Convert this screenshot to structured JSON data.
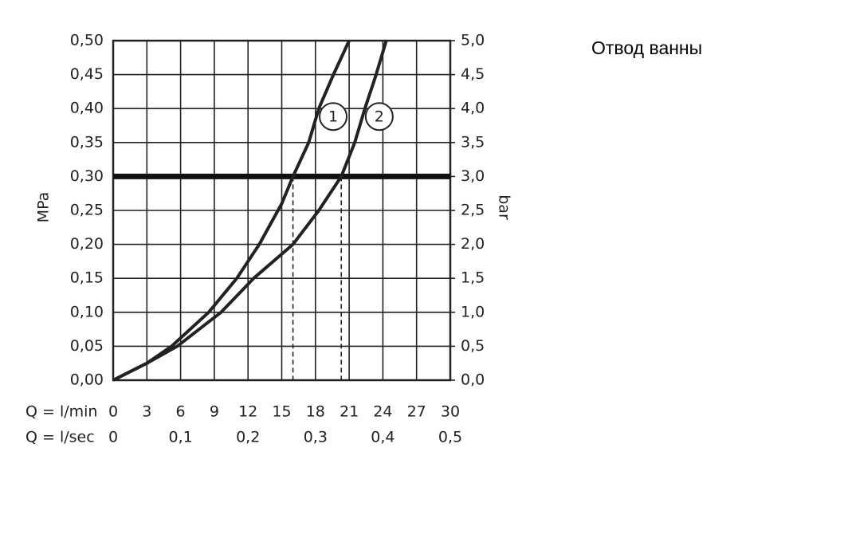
{
  "chart_data": {
    "type": "line",
    "title": "Отвод ванны",
    "y_label": "MPa",
    "y2_label": "bar",
    "x_label": "Q = l/min",
    "x2_label": "Q = l/sec",
    "xlim": [
      0,
      30
    ],
    "xticks": [
      0,
      3,
      6,
      9,
      12,
      15,
      18,
      21,
      24,
      27,
      30
    ],
    "x2lim": [
      0,
      0.5
    ],
    "x2ticks": [
      0,
      {
        "value": 0.1,
        "label": "0,1"
      },
      {
        "value": 0.2,
        "label": "0,2"
      },
      {
        "value": 0.3,
        "label": "0,3"
      },
      {
        "value": 0.4,
        "label": "0,4"
      },
      {
        "value": 0.5,
        "label": "0,5"
      }
    ],
    "ylim": [
      0,
      0.5
    ],
    "yticks": [
      {
        "value": 0,
        "label": "0,00"
      },
      {
        "value": 0.05,
        "label": "0,05"
      },
      {
        "value": 0.1,
        "label": "0,10"
      },
      {
        "value": 0.15,
        "label": "0,15"
      },
      {
        "value": 0.2,
        "label": "0,20"
      },
      {
        "value": 0.25,
        "label": "0,25"
      },
      {
        "value": 0.3,
        "label": "0,30"
      },
      {
        "value": 0.35,
        "label": "0,35"
      },
      {
        "value": 0.4,
        "label": "0,40"
      },
      {
        "value": 0.45,
        "label": "0,45"
      },
      {
        "value": 0.5,
        "label": "0,50"
      }
    ],
    "y2lim": [
      0,
      5
    ],
    "y2ticks": [
      {
        "value": 0,
        "label": "0,0"
      },
      {
        "value": 0.5,
        "label": "0,5"
      },
      {
        "value": 1,
        "label": "1,0"
      },
      {
        "value": 1.5,
        "label": "1,5"
      },
      {
        "value": 2,
        "label": "2,0"
      },
      {
        "value": 2.5,
        "label": "2,5"
      },
      {
        "value": 3,
        "label": "3,0"
      },
      {
        "value": 3.5,
        "label": "3,5"
      },
      {
        "value": 4,
        "label": "4,0"
      },
      {
        "value": 4.5,
        "label": "4,5"
      },
      {
        "value": 5,
        "label": "5,0"
      }
    ],
    "grid": true,
    "reference_line": 0.3,
    "dashed_x": [
      16,
      20.3
    ],
    "series": [
      {
        "name": "1",
        "color": "#222222",
        "x": [
          0,
          3,
          5.2,
          8.5,
          11,
          13,
          15,
          16,
          17.4,
          18.3,
          19.6,
          21
        ],
        "values": [
          0,
          0.025,
          0.05,
          0.1,
          0.15,
          0.2,
          0.26,
          0.3,
          0.35,
          0.4,
          0.45,
          0.5
        ]
      },
      {
        "name": "2",
        "color": "#222222",
        "x": [
          0,
          3,
          5.7,
          9.6,
          12.5,
          16,
          18.3,
          20.3,
          21.5,
          22.4,
          23.4,
          24.3
        ],
        "values": [
          0,
          0.025,
          0.05,
          0.1,
          0.15,
          0.2,
          0.25,
          0.3,
          0.35,
          0.4,
          0.45,
          0.5
        ]
      }
    ]
  }
}
